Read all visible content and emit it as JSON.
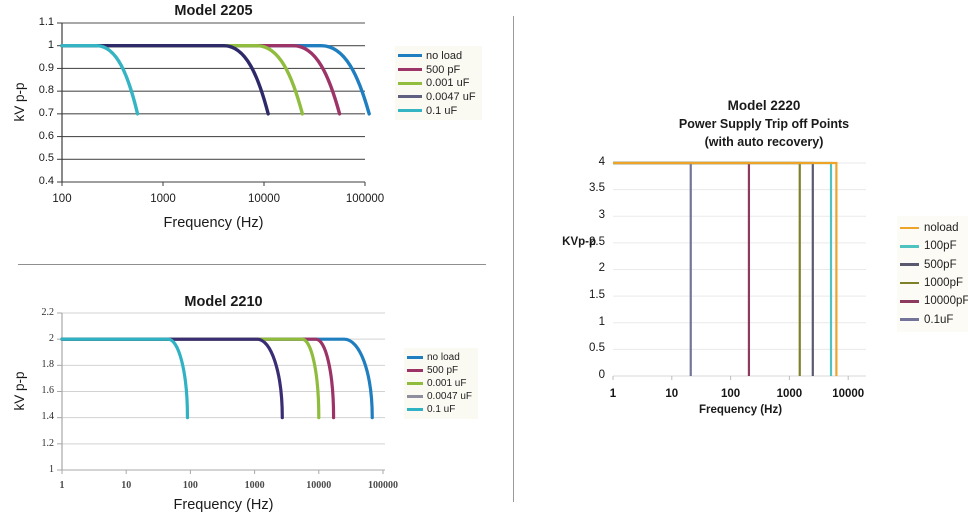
{
  "chart_data": [
    {
      "type": "line",
      "id": "model-2205",
      "title": "Model 2205",
      "xlabel": "Frequency (Hz)",
      "ylabel": "kV p-p",
      "x_scale": "log",
      "xlim": [
        100,
        100000
      ],
      "ylim": [
        0.4,
        1.1
      ],
      "x_ticks": [
        "100",
        "1000",
        "10000",
        "100000"
      ],
      "y_ticks": [
        "1.1",
        "1",
        "0.9",
        "0.8",
        "0.7",
        "0.6",
        "0.5",
        "0.4"
      ],
      "grid": "horizontal",
      "legend_position": "right",
      "series": [
        {
          "name": "no load",
          "color": "#1e7ec0",
          "flat_level": 1.0,
          "knee_hz": 37000,
          "end_hz": 110000,
          "end_level": 0.7
        },
        {
          "name": "500 pF",
          "color": "#9d3468",
          "flat_level": 1.0,
          "knee_hz": 19500,
          "end_hz": 56000,
          "end_level": 0.7
        },
        {
          "name": "0.001 uF",
          "color": "#90bd3d",
          "flat_level": 1.0,
          "knee_hz": 8500,
          "end_hz": 24000,
          "end_level": 0.7
        },
        {
          "name": "0.0047 uF",
          "color": "#2e2a6a",
          "legend_color": "#5f5f82",
          "flat_level": 1.0,
          "knee_hz": 4000,
          "end_hz": 11000,
          "end_level": 0.7
        },
        {
          "name": "0.1 uF",
          "color": "#35b4c4",
          "flat_level": 1.0,
          "knee_hz": 220,
          "end_hz": 560,
          "end_level": 0.7
        }
      ]
    },
    {
      "type": "line",
      "id": "model-2210",
      "title": "Model 2210",
      "xlabel": "Frequency (Hz)",
      "ylabel": "kV p-p",
      "x_scale": "log",
      "xlim": [
        1,
        100000
      ],
      "ylim": [
        1.0,
        2.2
      ],
      "x_ticks": [
        "1",
        "10",
        "100",
        "1000",
        "10000",
        "100000"
      ],
      "y_ticks": [
        "2.2",
        "2",
        "1.8",
        "1.6",
        "1.4",
        "1.2",
        "1"
      ],
      "grid": "horizontal",
      "legend_position": "right",
      "series": [
        {
          "name": "no load",
          "color": "#1e7ec0",
          "flat_level": 2.0,
          "knee_hz": 25000,
          "end_hz": 68000,
          "end_level": 1.4
        },
        {
          "name": "500 pF",
          "color": "#9c3366",
          "flat_level": 2.0,
          "knee_hz": 9000,
          "end_hz": 17000,
          "end_level": 1.4
        },
        {
          "name": "0.001 uF",
          "color": "#8fbc3c",
          "flat_level": 2.0,
          "knee_hz": 5500,
          "end_hz": 10000,
          "end_level": 1.4
        },
        {
          "name": "0.0047 uF",
          "color": "#3a2d74",
          "legend_color": "#8e8e9e",
          "flat_level": 2.0,
          "knee_hz": 1100,
          "end_hz": 2700,
          "end_level": 1.4
        },
        {
          "name": "0.1 uF",
          "color": "#2fb3c4",
          "flat_level": 2.0,
          "knee_hz": 45,
          "end_hz": 90,
          "end_level": 1.4
        }
      ]
    },
    {
      "type": "line",
      "id": "model-2220",
      "title": "Model 2220",
      "subtitle": "Power Supply Trip off Points",
      "subtitle2": "(with auto recovery)",
      "xlabel": "Frequency (Hz)",
      "ylabel": "KVp-p",
      "x_scale": "log",
      "xlim": [
        1,
        10000
      ],
      "ylim": [
        0,
        4
      ],
      "x_ticks": [
        "1",
        "10",
        "100",
        "1000",
        "10000"
      ],
      "y_ticks": [
        "4",
        "3.5",
        "3",
        "2.5",
        "2",
        "1.5",
        "1",
        "0.5",
        "0"
      ],
      "grid": "horizontal",
      "legend_position": "right",
      "series": [
        {
          "name": "noload",
          "color": "#eda429",
          "flat_level": 4,
          "trip_hz": 6300,
          "end_level": 0
        },
        {
          "name": "100pF",
          "color": "#4fc3bf",
          "flat_level": 4,
          "trip_hz": 5100,
          "end_level": 0
        },
        {
          "name": "500pF",
          "color": "#5a5a6e",
          "flat_level": 4,
          "trip_hz": 2500,
          "end_level": 0
        },
        {
          "name": "1000pF",
          "color": "#7f8128",
          "flat_level": 4,
          "trip_hz": 1500,
          "end_level": 0
        },
        {
          "name": "10000pF",
          "color": "#8c3a60",
          "flat_level": 4,
          "trip_hz": 205,
          "end_level": 0
        },
        {
          "name": "0.1uF",
          "color": "#74749a",
          "flat_level": 4,
          "trip_hz": 21,
          "end_level": 0
        }
      ]
    }
  ]
}
